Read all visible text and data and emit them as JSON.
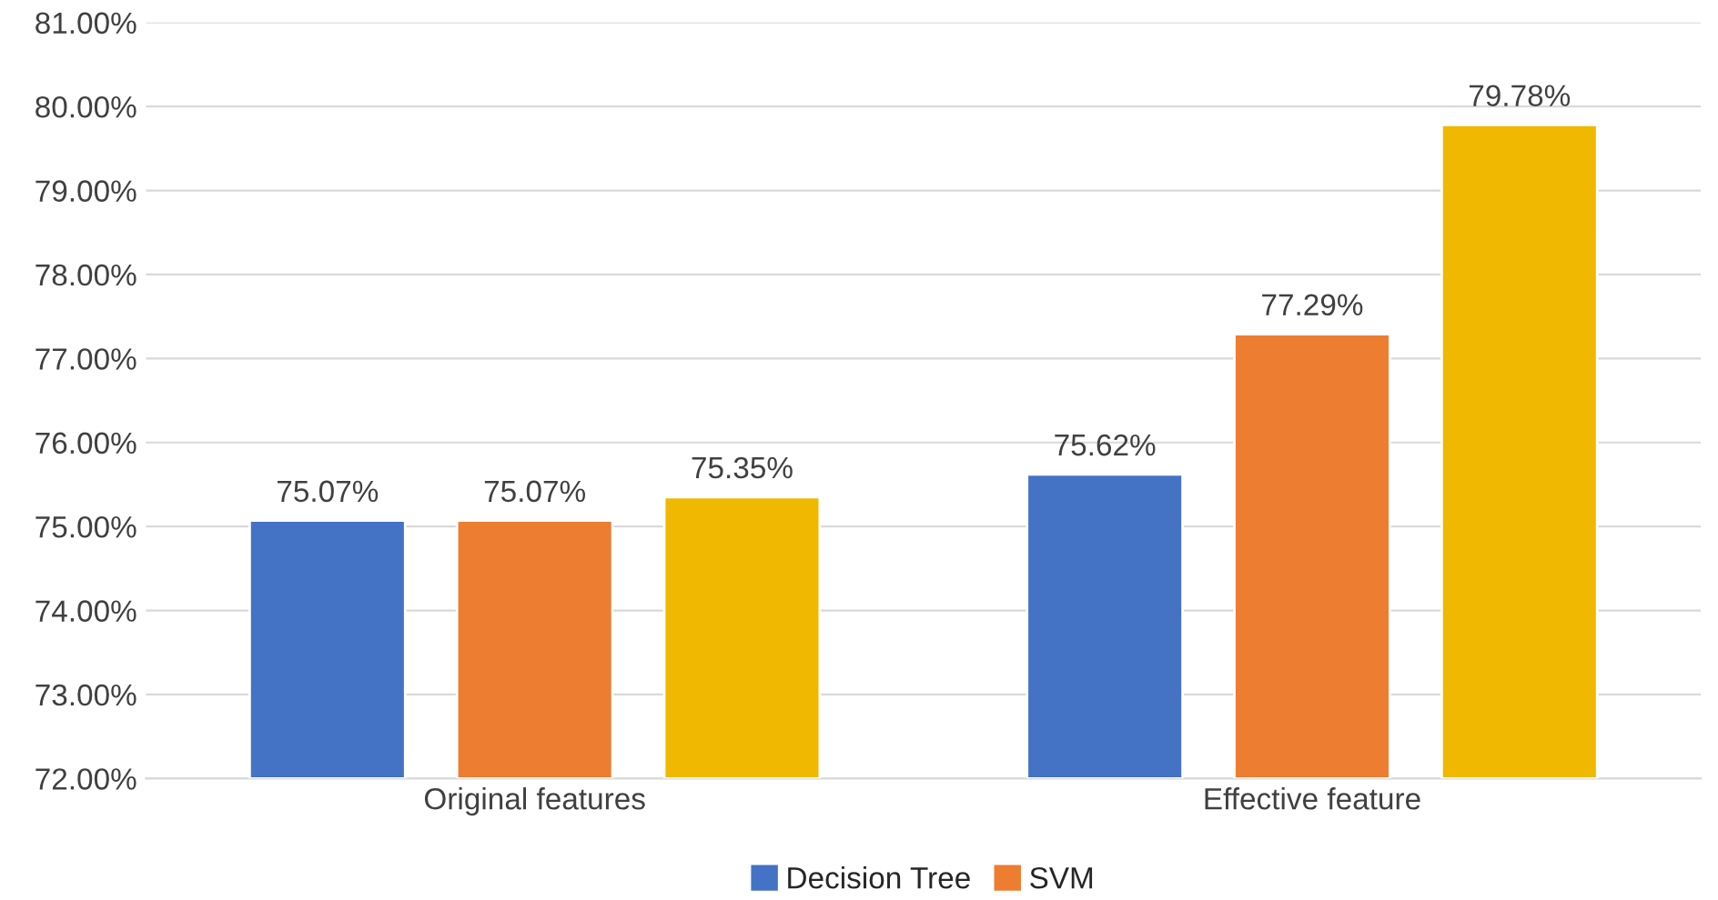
{
  "chart_data": {
    "type": "bar",
    "categories": [
      "Original features",
      "Effective feature"
    ],
    "series": [
      {
        "name": "Decision Tree",
        "color": "#4472c4",
        "values": [
          75.07,
          75.62
        ],
        "value_labels": [
          "75.07%",
          "75.62%"
        ]
      },
      {
        "name": "SVM",
        "color": "#ed7d31",
        "values": [
          75.07,
          77.29
        ],
        "value_labels": [
          "75.07%",
          "77.29%"
        ]
      },
      {
        "color": "#f0b800",
        "values": [
          75.35,
          79.78
        ],
        "value_labels": [
          "75.35%",
          "79.78%"
        ]
      }
    ],
    "ylim": [
      72,
      81
    ],
    "yticks": [
      {
        "value": 72,
        "label": "72.00%"
      },
      {
        "value": 73,
        "label": "73.00%"
      },
      {
        "value": 74,
        "label": "74.00%"
      },
      {
        "value": 75,
        "label": "75.00%"
      },
      {
        "value": 76,
        "label": "76.00%"
      },
      {
        "value": 77,
        "label": "77.00%"
      },
      {
        "value": 78,
        "label": "78.00%"
      },
      {
        "value": 79,
        "label": "79.00%"
      },
      {
        "value": 80,
        "label": "80.00%"
      },
      {
        "value": 81,
        "label": "81.00%"
      }
    ],
    "grid": "y",
    "legend": "bottom"
  }
}
